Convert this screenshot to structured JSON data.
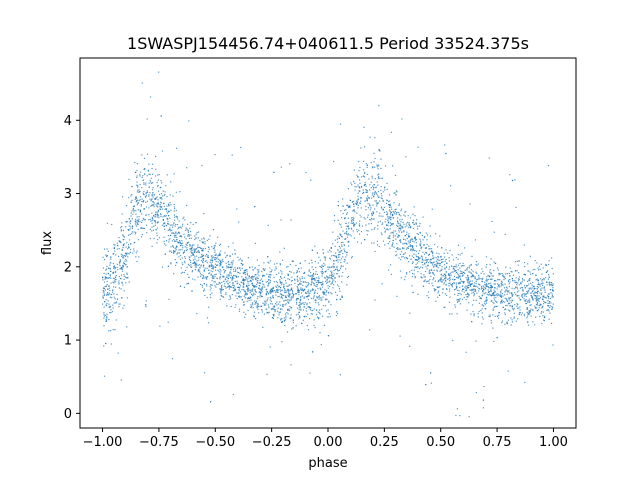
{
  "chart_data": {
    "type": "scatter",
    "title": "1SWASPJ154456.74+040611.5 Period 33524.375s",
    "xlabel": "phase",
    "ylabel": "flux",
    "xlim": [
      -1.1,
      1.1
    ],
    "ylim": [
      -0.2,
      4.85
    ],
    "x_ticks": [
      -1.0,
      -0.75,
      -0.5,
      -0.25,
      0.0,
      0.25,
      0.5,
      0.75,
      1.0
    ],
    "x_tick_labels": [
      "−1.00",
      "−0.75",
      "−0.50",
      "−0.25",
      "0.00",
      "0.25",
      "0.50",
      "0.75",
      "1.00"
    ],
    "y_ticks": [
      0,
      1,
      2,
      3,
      4
    ],
    "y_tick_labels": [
      "0",
      "1",
      "2",
      "3",
      "4"
    ],
    "grid": false,
    "legend": "none",
    "marker_color": "#1f77b4",
    "series": [
      {
        "x": [
          -1.0,
          -0.95,
          -0.9,
          -0.85,
          -0.8,
          -0.75,
          -0.7,
          -0.65,
          -0.6,
          -0.55,
          -0.5,
          -0.45,
          -0.4,
          -0.35,
          -0.3,
          -0.25,
          -0.2,
          -0.15,
          -0.1,
          -0.05,
          0.0,
          0.05,
          0.1,
          0.15,
          0.2,
          0.25,
          0.3,
          0.35,
          0.4,
          0.45,
          0.5,
          0.55,
          0.6,
          0.65,
          0.7,
          0.75,
          0.8,
          0.85,
          0.9,
          0.95,
          1.0
        ],
        "y": [
          1.65,
          1.8,
          2.2,
          2.75,
          2.95,
          2.8,
          2.55,
          2.35,
          2.2,
          2.05,
          1.95,
          1.85,
          1.78,
          1.72,
          1.68,
          1.65,
          1.62,
          1.6,
          1.62,
          1.7,
          1.8,
          2.1,
          2.55,
          2.95,
          2.95,
          2.8,
          2.55,
          2.35,
          2.2,
          2.05,
          1.95,
          1.85,
          1.78,
          1.72,
          1.68,
          1.65,
          1.62,
          1.6,
          1.6,
          1.62,
          1.65
        ],
        "scatter_sd": [
          0.28,
          0.3,
          0.32,
          0.32,
          0.3,
          0.28,
          0.26,
          0.24,
          0.22,
          0.2,
          0.2,
          0.19,
          0.19,
          0.19,
          0.19,
          0.19,
          0.19,
          0.19,
          0.2,
          0.22,
          0.24,
          0.28,
          0.32,
          0.32,
          0.3,
          0.28,
          0.26,
          0.24,
          0.22,
          0.2,
          0.2,
          0.19,
          0.19,
          0.19,
          0.19,
          0.19,
          0.19,
          0.19,
          0.2,
          0.2,
          0.2
        ]
      }
    ]
  }
}
